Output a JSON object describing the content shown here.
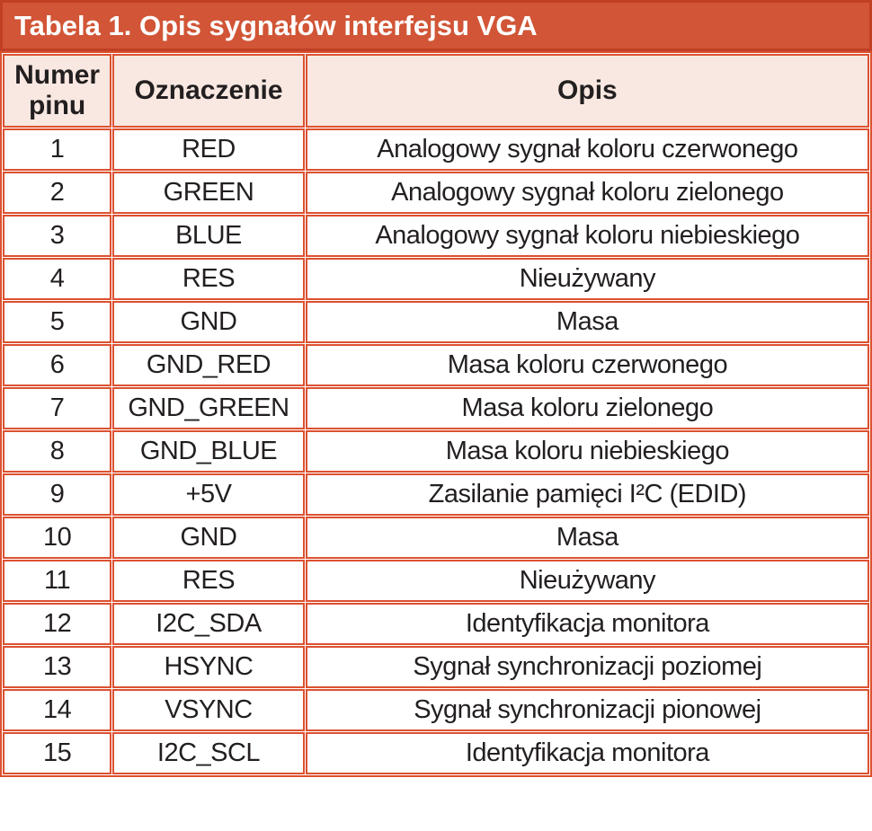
{
  "title": "Tabela 1. Opis sygnałów interfejsu VGA",
  "columns": [
    "Numer pinu",
    "Oznaczenie",
    "Opis"
  ],
  "rows": [
    {
      "pin": "1",
      "name": "RED",
      "desc": "Analogowy sygnał koloru czerwonego"
    },
    {
      "pin": "2",
      "name": "GREEN",
      "desc": "Analogowy sygnał koloru zielonego"
    },
    {
      "pin": "3",
      "name": "BLUE",
      "desc": "Analogowy sygnał koloru niebieskiego"
    },
    {
      "pin": "4",
      "name": "RES",
      "desc": "Nieużywany"
    },
    {
      "pin": "5",
      "name": "GND",
      "desc": "Masa"
    },
    {
      "pin": "6",
      "name": "GND_RED",
      "desc": "Masa koloru czerwonego"
    },
    {
      "pin": "7",
      "name": "GND_GREEN",
      "desc": "Masa koloru zielonego"
    },
    {
      "pin": "8",
      "name": "GND_BLUE",
      "desc": "Masa koloru niebieskiego"
    },
    {
      "pin": "9",
      "name": "+5V",
      "desc": "Zasilanie pamięci I²C (EDID)"
    },
    {
      "pin": "10",
      "name": "GND",
      "desc": "Masa"
    },
    {
      "pin": "11",
      "name": "RES",
      "desc": "Nieużywany"
    },
    {
      "pin": "12",
      "name": "I2C_SDA",
      "desc": "Identyfikacja monitora"
    },
    {
      "pin": "13",
      "name": "HSYNC",
      "desc": "Sygnał synchronizacji poziomej"
    },
    {
      "pin": "14",
      "name": "VSYNC",
      "desc": "Sygnał synchronizacji pionowej"
    },
    {
      "pin": "15",
      "name": "I2C_SCL",
      "desc": "Identyfikacja monitora"
    }
  ],
  "colors": {
    "title_bg": "#d15536",
    "title_border": "#c13f24",
    "title_text": "#ffffff",
    "header_bg": "#f8e8e1",
    "cell_border": "#dc5130",
    "cell_bg": "#ffffff",
    "text": "#231f20"
  }
}
